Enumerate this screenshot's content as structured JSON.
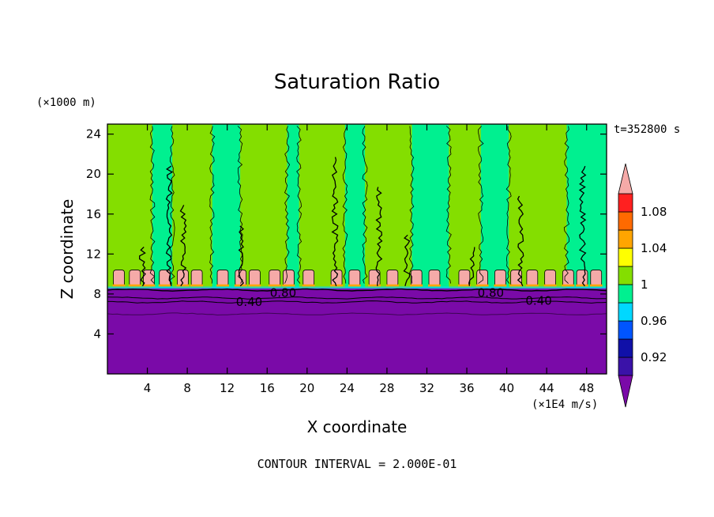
{
  "chart_data": {
    "type": "heatmap",
    "title": "Saturation Ratio",
    "xlabel": "X coordinate",
    "ylabel": "Z coordinate",
    "x_units": "(×1E4 m/s)",
    "y_units": "(×1000 m)",
    "time_label": "t=352800 s",
    "footer": "CONTOUR INTERVAL = 2.000E-01",
    "xlim": [
      0,
      50
    ],
    "ylim": [
      0,
      25
    ],
    "x_ticks": [
      4,
      8,
      12,
      16,
      20,
      24,
      28,
      32,
      36,
      40,
      44,
      48
    ],
    "y_ticks": [
      4,
      8,
      12,
      16,
      20,
      24
    ],
    "contour_labels": [
      {
        "text": "0.80",
        "x": 17.6,
        "y": 8.1
      },
      {
        "text": "0.40",
        "x": 14.2,
        "y": 7.2
      },
      {
        "text": "0.80",
        "x": 38.4,
        "y": 8.1
      },
      {
        "text": "0.40",
        "x": 43.2,
        "y": 7.3
      }
    ],
    "colorbar": {
      "tick_labels": [
        "0.92",
        "0.96",
        "1",
        "1.04",
        "1.08"
      ],
      "tick_values": [
        0.92,
        0.96,
        1.0,
        1.04,
        1.08
      ],
      "levels": [
        0.9,
        0.92,
        0.94,
        0.96,
        0.98,
        1.0,
        1.02,
        1.04,
        1.06,
        1.08,
        1.1
      ],
      "colors": [
        "#3a12a8",
        "#1010a8",
        "#0055ff",
        "#00d8ff",
        "#00f090",
        "#84de00",
        "#ffff00",
        "#ffa500",
        "#ff6a00",
        "#ff2020"
      ],
      "under_color": "#7a0aa8",
      "over_color": "#f5aaa8"
    },
    "regions": {
      "lower_layer_color": "#7a0aa8",
      "lower_layer_top": 8.6,
      "supersaturated_band_color": "#f5aaa8",
      "supersaturated_band_range": [
        8.8,
        10.4
      ],
      "green_bands": [
        {
          "x": [
            0,
            4.5
          ],
          "color": "#84de00"
        },
        {
          "x": [
            4.5,
            6.5
          ],
          "color": "#00f090"
        },
        {
          "x": [
            6.5,
            10.5
          ],
          "color": "#84de00"
        },
        {
          "x": [
            10.5,
            13.3
          ],
          "color": "#00f090"
        },
        {
          "x": [
            13.3,
            18.0
          ],
          "color": "#84de00"
        },
        {
          "x": [
            18.0,
            19.2
          ],
          "color": "#00f090"
        },
        {
          "x": [
            19.2,
            23.8
          ],
          "color": "#84de00"
        },
        {
          "x": [
            23.8,
            25.8
          ],
          "color": "#00f090"
        },
        {
          "x": [
            25.8,
            30.5
          ],
          "color": "#84de00"
        },
        {
          "x": [
            30.5,
            34.2
          ],
          "color": "#00f090"
        },
        {
          "x": [
            34.2,
            37.4
          ],
          "color": "#84de00"
        },
        {
          "x": [
            37.4,
            40.2
          ],
          "color": "#00f090"
        },
        {
          "x": [
            40.2,
            46.0
          ],
          "color": "#84de00"
        },
        {
          "x": [
            46.0,
            50
          ],
          "color": "#00f090"
        }
      ]
    }
  }
}
